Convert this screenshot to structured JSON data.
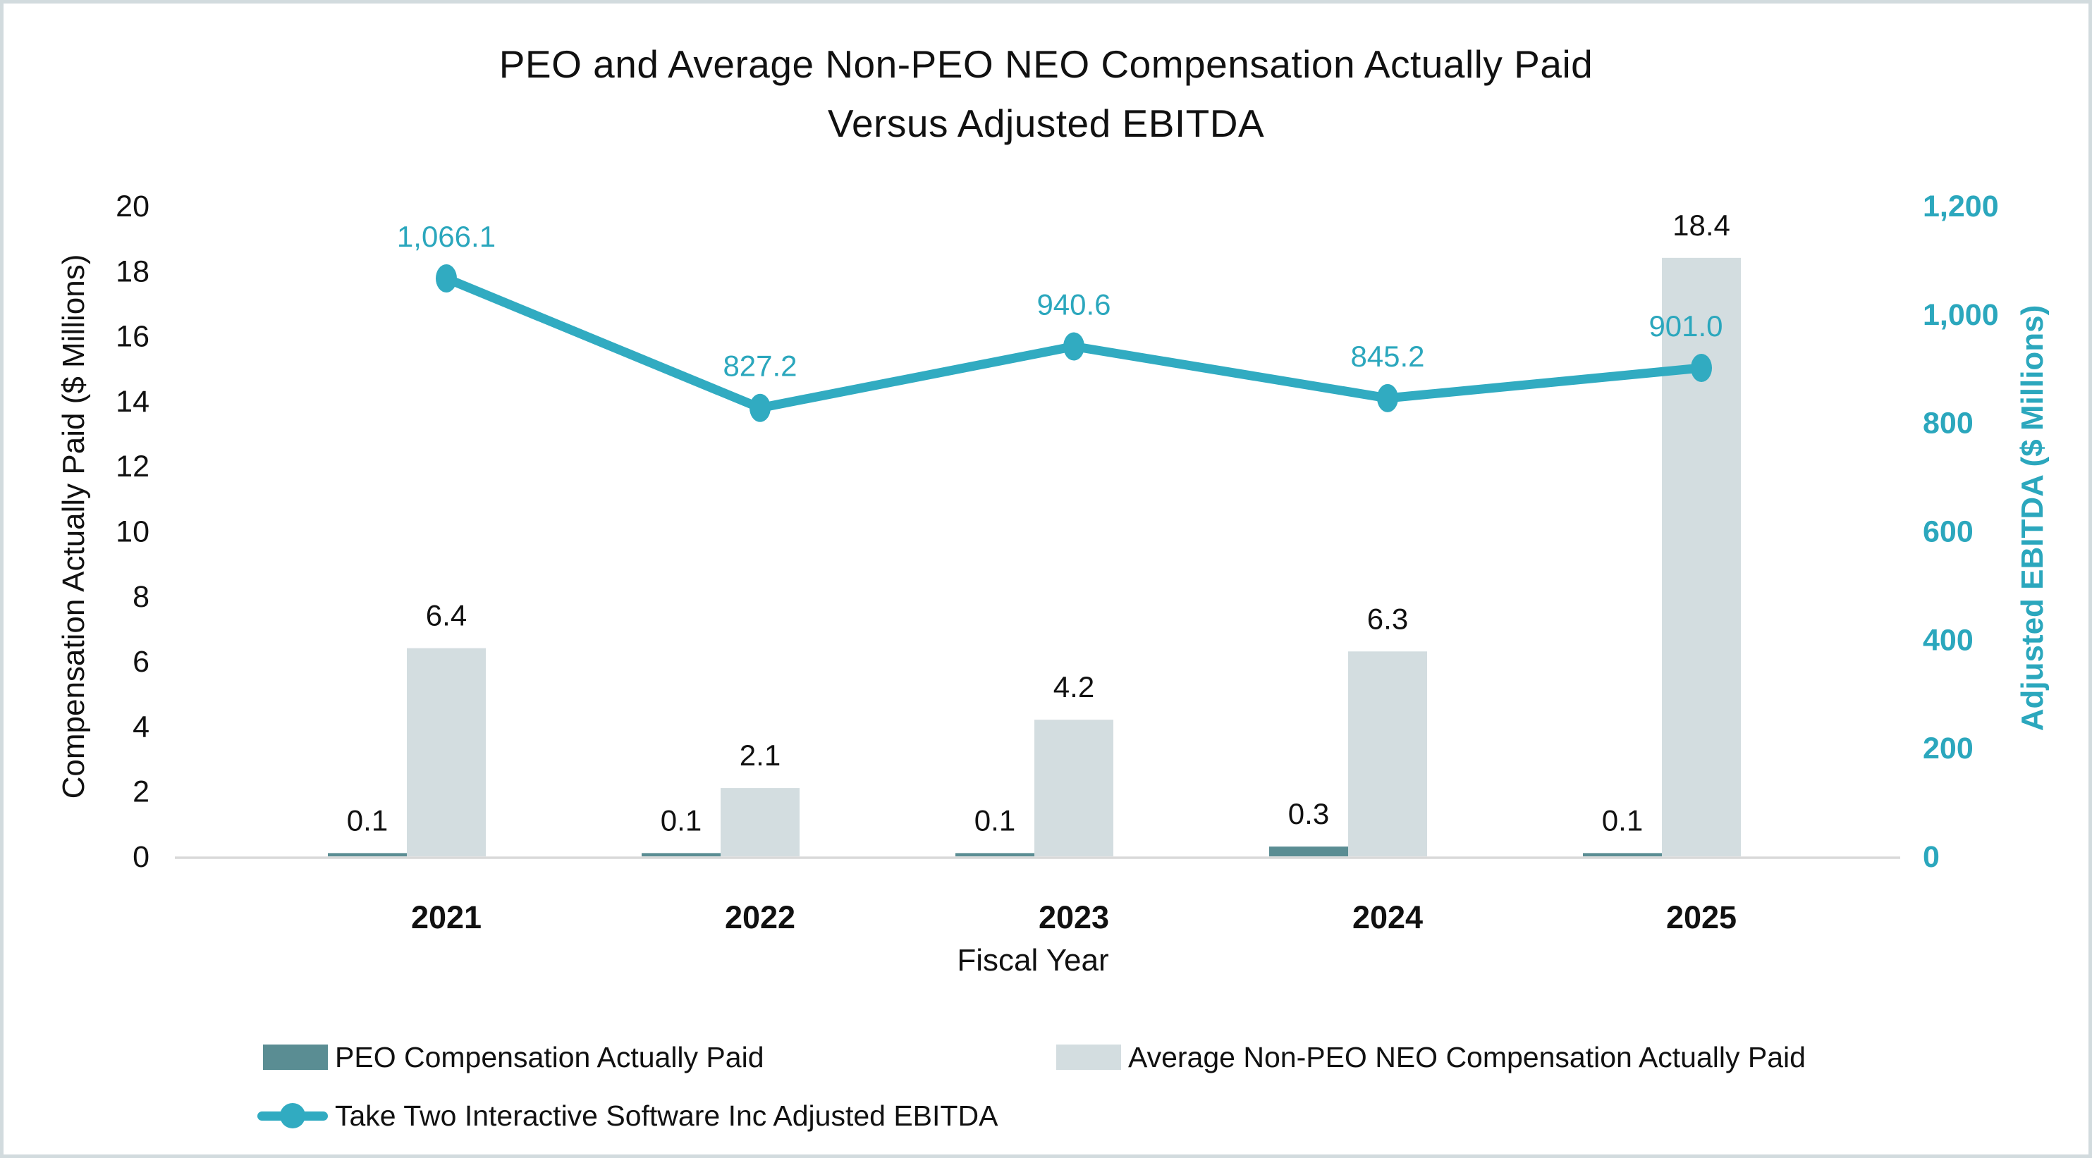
{
  "title": {
    "line1": "PEO and Average Non-PEO NEO Compensation Actually Paid",
    "line2": "Versus Adjusted EBITDA"
  },
  "axes": {
    "left_title": "Compensation Actually Paid ($ Millions)",
    "right_title": "Adjusted EBITDA ($ Millions)",
    "x_title": "Fiscal Year"
  },
  "colors": {
    "peo_bar": "#5a8d93",
    "non_peo_bar": "#d3dde0",
    "ebitda_line": "#31abc1",
    "ebitda_text": "#2ba7bd",
    "axis_line": "#d9d9d9",
    "text": "#111111",
    "background": "#ffffff",
    "frame_border": "#d2dbde"
  },
  "legend": {
    "items": [
      {
        "key": "peo",
        "label": "PEO Compensation Actually Paid"
      },
      {
        "key": "non_peo",
        "label": "Average Non-PEO NEO Compensation Actually Paid"
      },
      {
        "key": "ebitda",
        "label": "Take Two Interactive Software Inc Adjusted EBITDA"
      }
    ]
  },
  "chart_data": {
    "type": "bar",
    "subtype": "combo-bar-line-dual-axis",
    "title": "PEO and Average Non-PEO NEO Compensation Actually Paid Versus Adjusted EBITDA",
    "categories": [
      "2021",
      "2022",
      "2023",
      "2024",
      "2025"
    ],
    "xlabel": "Fiscal Year",
    "left_axis": {
      "label": "Compensation Actually Paid ($ Millions)",
      "min": 0,
      "max": 20,
      "step": 2,
      "ticks": [
        "0",
        "2",
        "4",
        "6",
        "8",
        "10",
        "12",
        "14",
        "16",
        "18",
        "20"
      ]
    },
    "right_axis": {
      "label": "Adjusted EBITDA ($ Millions)",
      "min": 0,
      "max": 1200,
      "step": 200,
      "ticks": [
        "0",
        "200",
        "400",
        "600",
        "800",
        "1,000",
        "1,200"
      ]
    },
    "grid": false,
    "legend_position": "bottom",
    "series": [
      {
        "key": "peo",
        "name": "PEO Compensation Actually Paid",
        "type": "bar",
        "axis": "left",
        "color": "#5a8d93",
        "values": [
          0.1,
          0.1,
          0.1,
          0.3,
          0.1
        ],
        "labels": [
          "0.1",
          "0.1",
          "0.1",
          "0.3",
          "0.1"
        ]
      },
      {
        "key": "non_peo",
        "name": "Average Non-PEO NEO Compensation Actually Paid",
        "type": "bar",
        "axis": "left",
        "color": "#d3dde0",
        "values": [
          6.4,
          2.1,
          4.2,
          6.3,
          18.4
        ],
        "labels": [
          "6.4",
          "2.1",
          "4.2",
          "6.3",
          "18.4"
        ]
      },
      {
        "key": "ebitda",
        "name": "Take Two Interactive Software Inc Adjusted EBITDA",
        "type": "line",
        "axis": "right",
        "color": "#31abc1",
        "values": [
          1066.1,
          827.2,
          940.6,
          845.2,
          901.0
        ],
        "labels": [
          "1,066.1",
          "827.2",
          "940.6",
          "845.2",
          "901.0"
        ]
      }
    ]
  }
}
